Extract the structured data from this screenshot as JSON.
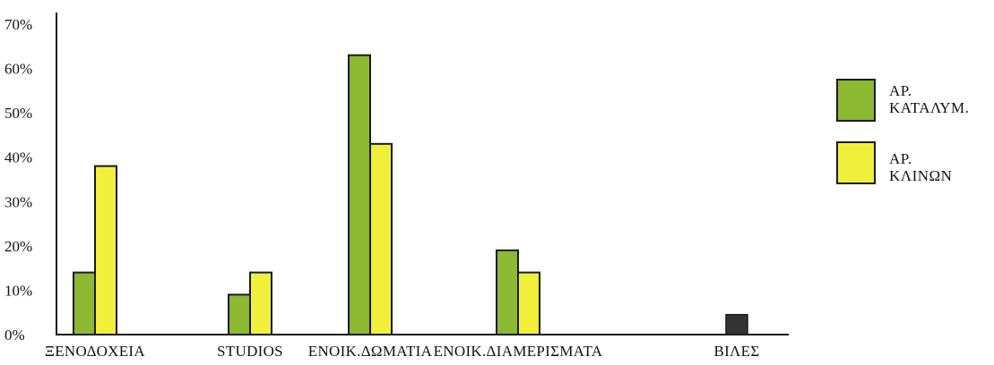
{
  "chart_data": {
    "type": "bar",
    "title": "",
    "xlabel": "",
    "ylabel": "",
    "ylim": [
      0,
      70
    ],
    "y_ticks": [
      "0%",
      "10%",
      "20%",
      "30%",
      "40%",
      "50%",
      "60%",
      "70%"
    ],
    "y_tick_values": [
      0,
      10,
      20,
      30,
      40,
      50,
      60,
      70
    ],
    "grid": false,
    "legend_position": "right",
    "categories": [
      "ΞΕΝΟΔΟΧΕΙΑ",
      "STUDIOS",
      "ΕΝΟΙΚ.ΔΩΜΑΤΙΑ",
      "ΕΝΟΙΚ.ΔΙΑΜΕΡΙΣΜΑΤΑ",
      "ΒΙΛΕΣ"
    ],
    "series": [
      {
        "name_lines": [
          "ΑΡ.",
          "ΚΑΤΑΛΥΜ."
        ],
        "color": "#8db832",
        "values": [
          14,
          9,
          63,
          19,
          null
        ]
      },
      {
        "name_lines": [
          "ΑΡ.",
          "ΚΛΙΝΩΝ"
        ],
        "color": "#f0ef3c",
        "values": [
          38,
          14,
          43,
          14,
          null
        ]
      }
    ],
    "extra_bars": [
      {
        "category": "ΒΙΛΕΣ",
        "color": "#333333",
        "value": 4.5
      }
    ]
  }
}
